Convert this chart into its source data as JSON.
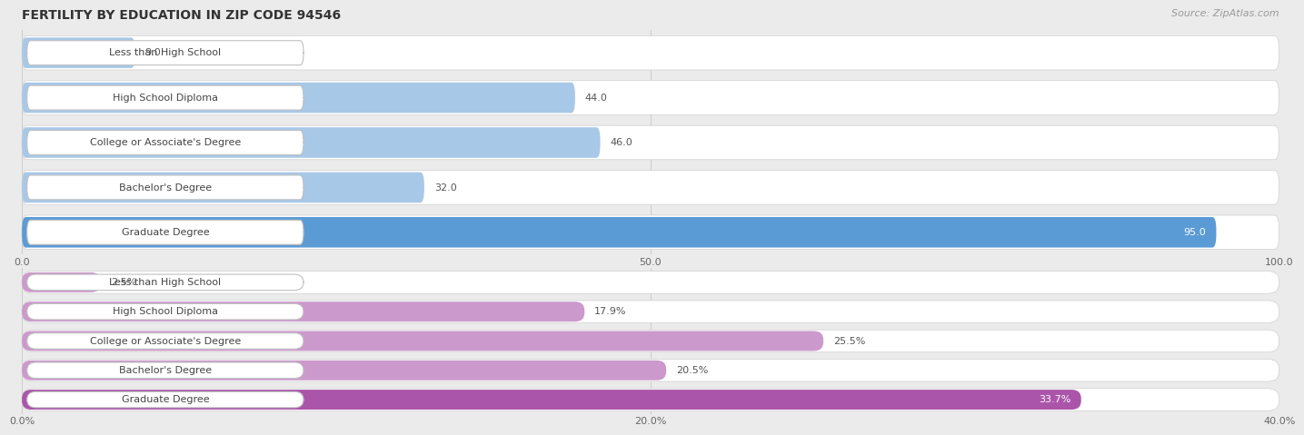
{
  "title": "FERTILITY BY EDUCATION IN ZIP CODE 94546",
  "source": "Source: ZipAtlas.com",
  "chart1": {
    "categories": [
      "Less than High School",
      "High School Diploma",
      "College or Associate's Degree",
      "Bachelor's Degree",
      "Graduate Degree"
    ],
    "values": [
      9.0,
      44.0,
      46.0,
      32.0,
      95.0
    ],
    "xlim": [
      0,
      100
    ],
    "xticks": [
      0.0,
      50.0,
      100.0
    ],
    "xtick_labels": [
      "0.0",
      "50.0",
      "100.0"
    ],
    "bar_color_normal": "#a8c8e8",
    "bar_color_highlight": "#5b9bd5",
    "highlight_index": 4,
    "value_color_normal": "#555555",
    "value_color_highlight": "#ffffff"
  },
  "chart2": {
    "categories": [
      "Less than High School",
      "High School Diploma",
      "College or Associate's Degree",
      "Bachelor's Degree",
      "Graduate Degree"
    ],
    "values": [
      2.5,
      17.9,
      25.5,
      20.5,
      33.7
    ],
    "xlim": [
      0,
      40
    ],
    "xticks": [
      0.0,
      20.0,
      40.0
    ],
    "xtick_labels": [
      "0.0%",
      "20.0%",
      "40.0%"
    ],
    "bar_color_normal": "#cc99cc",
    "bar_color_highlight": "#aa55aa",
    "highlight_index": 4,
    "value_color_normal": "#555555",
    "value_color_highlight": "#ffffff"
  },
  "bg_color": "#ebebeb",
  "title_fontsize": 10,
  "label_fontsize": 8,
  "value_fontsize": 8,
  "tick_fontsize": 8,
  "source_fontsize": 8
}
